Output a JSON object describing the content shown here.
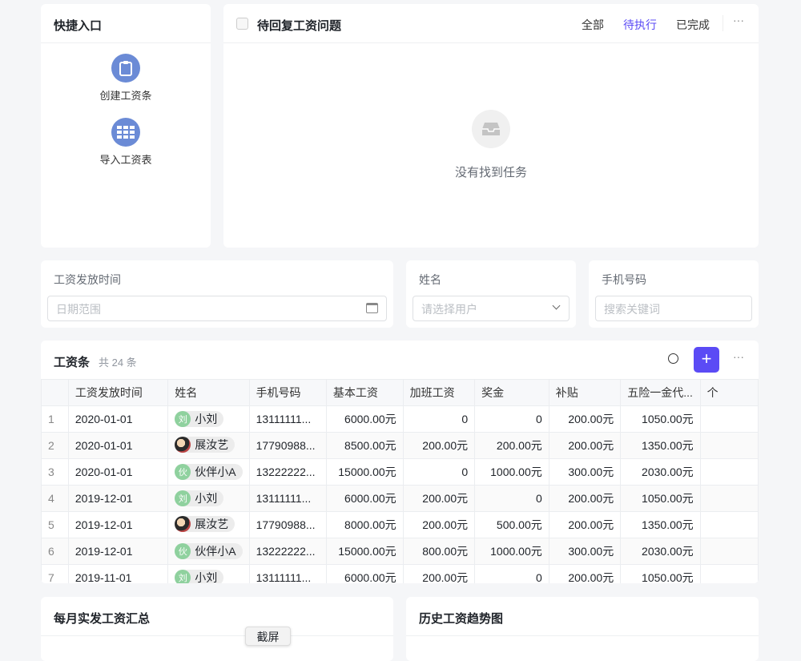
{
  "quick_entry": {
    "title": "快捷入口",
    "items": [
      {
        "label": "创建工资条",
        "icon": "clipboard-icon"
      },
      {
        "label": "导入工资表",
        "icon": "table-grid-icon"
      }
    ]
  },
  "tasks": {
    "title": "待回复工资问题",
    "tabs": [
      "全部",
      "待执行",
      "已完成"
    ],
    "active_tab": "待执行",
    "empty_text": "没有找到任务",
    "accent": "#5b4bf5"
  },
  "filters": {
    "date": {
      "label": "工资发放时间",
      "placeholder": "日期范围"
    },
    "name": {
      "label": "姓名",
      "placeholder": "请选择用户"
    },
    "phone": {
      "label": "手机号码",
      "placeholder": "搜索关键词"
    }
  },
  "payroll": {
    "title": "工资条",
    "count": "共 24 条",
    "columns": [
      "",
      "工资发放时间",
      "姓名",
      "手机号码",
      "基本工资",
      "加班工资",
      "奖金",
      "补贴",
      "五险一金代...",
      "个"
    ],
    "rows": [
      [
        "1",
        "2020-01-01",
        "小刘",
        "刘",
        "13111111...",
        "6000.00元",
        "0",
        "0",
        "200.00元",
        "1050.00元"
      ],
      [
        "2",
        "2020-01-01",
        "展汝艺",
        "",
        "17790988...",
        "8500.00元",
        "200.00元",
        "200.00元",
        "200.00元",
        "1350.00元"
      ],
      [
        "3",
        "2020-01-01",
        "伙伴小A",
        "伙",
        "13222222...",
        "15000.00元",
        "0",
        "1000.00元",
        "300.00元",
        "2030.00元"
      ],
      [
        "4",
        "2019-12-01",
        "小刘",
        "刘",
        "13111111...",
        "6000.00元",
        "200.00元",
        "0",
        "200.00元",
        "1050.00元"
      ],
      [
        "5",
        "2019-12-01",
        "展汝艺",
        "",
        "17790988...",
        "8000.00元",
        "200.00元",
        "500.00元",
        "200.00元",
        "1350.00元"
      ],
      [
        "6",
        "2019-12-01",
        "伙伴小A",
        "伙",
        "13222222...",
        "15000.00元",
        "800.00元",
        "1000.00元",
        "300.00元",
        "2030.00元"
      ],
      [
        "7",
        "2019-11-01",
        "小刘",
        "刘",
        "13111111...",
        "6000.00元",
        "200.00元",
        "0",
        "200.00元",
        "1050.00元"
      ]
    ]
  },
  "monthly": {
    "title": "每月实发工资汇总"
  },
  "trend": {
    "title": "历史工资趋势图"
  },
  "screenshot_button": "截屏"
}
